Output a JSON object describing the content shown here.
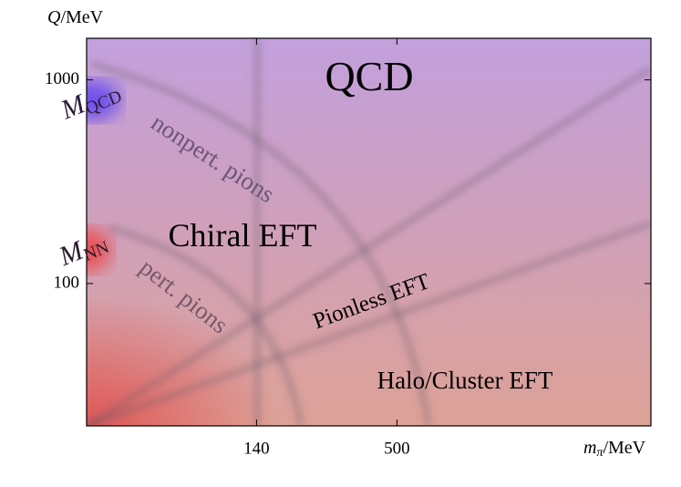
{
  "chart_data": {
    "type": "schematic",
    "ylabel": {
      "main": "Q",
      "rest": "/MeV"
    },
    "xlabel": {
      "main": "m",
      "sub": "π",
      "rest": "/MeV"
    },
    "xscale": "log",
    "yscale": "log",
    "xlim": [
      30,
      5000
    ],
    "ylim": [
      20,
      1600
    ],
    "xticks": [
      140,
      500
    ],
    "yticks": [
      100,
      1000
    ],
    "annotations": [
      {
        "text": "QCD"
      },
      {
        "text": "M",
        "sub": "QCD"
      },
      {
        "text": "nonpert. pions"
      },
      {
        "text": "Chiral EFT"
      },
      {
        "text": "M",
        "sub": "NN"
      },
      {
        "text": "pert. pions"
      },
      {
        "text": "Pionless EFT"
      },
      {
        "text": "Halo/Cluster EFT"
      }
    ]
  }
}
